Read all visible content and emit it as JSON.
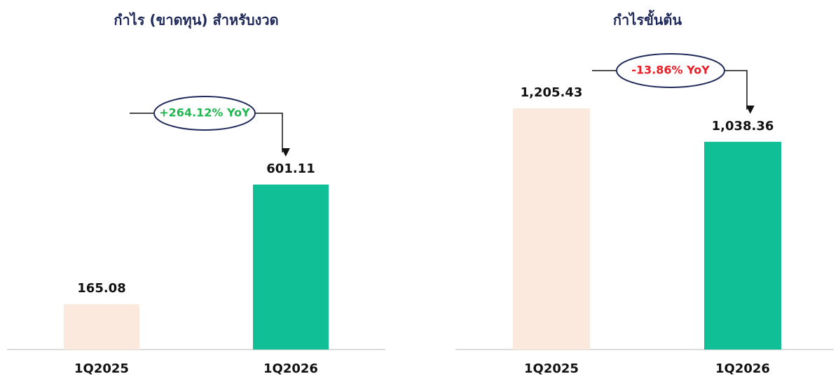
{
  "chart_data": [
    {
      "type": "bar",
      "title": "กำไร (ขาดทุน) สำหรับงวด",
      "categories": [
        "1Q2025",
        "1Q2026"
      ],
      "values": [
        165.08,
        601.11
      ],
      "value_labels": [
        "165.08",
        "601.11"
      ],
      "colors": [
        "#fce9de",
        "#10bf96"
      ],
      "annotation": {
        "text": "+264.12% YoY",
        "color": "#1fb84f"
      }
    },
    {
      "type": "bar",
      "title": "กำไรขั้นต้น",
      "categories": [
        "1Q2025",
        "1Q2026"
      ],
      "values": [
        1205.43,
        1038.36
      ],
      "value_labels": [
        "1,205.43",
        "1,038.36"
      ],
      "colors": [
        "#fce9de",
        "#10bf96"
      ],
      "annotation": {
        "text": "-13.86% YoY",
        "color": "#ee1c25"
      }
    }
  ]
}
